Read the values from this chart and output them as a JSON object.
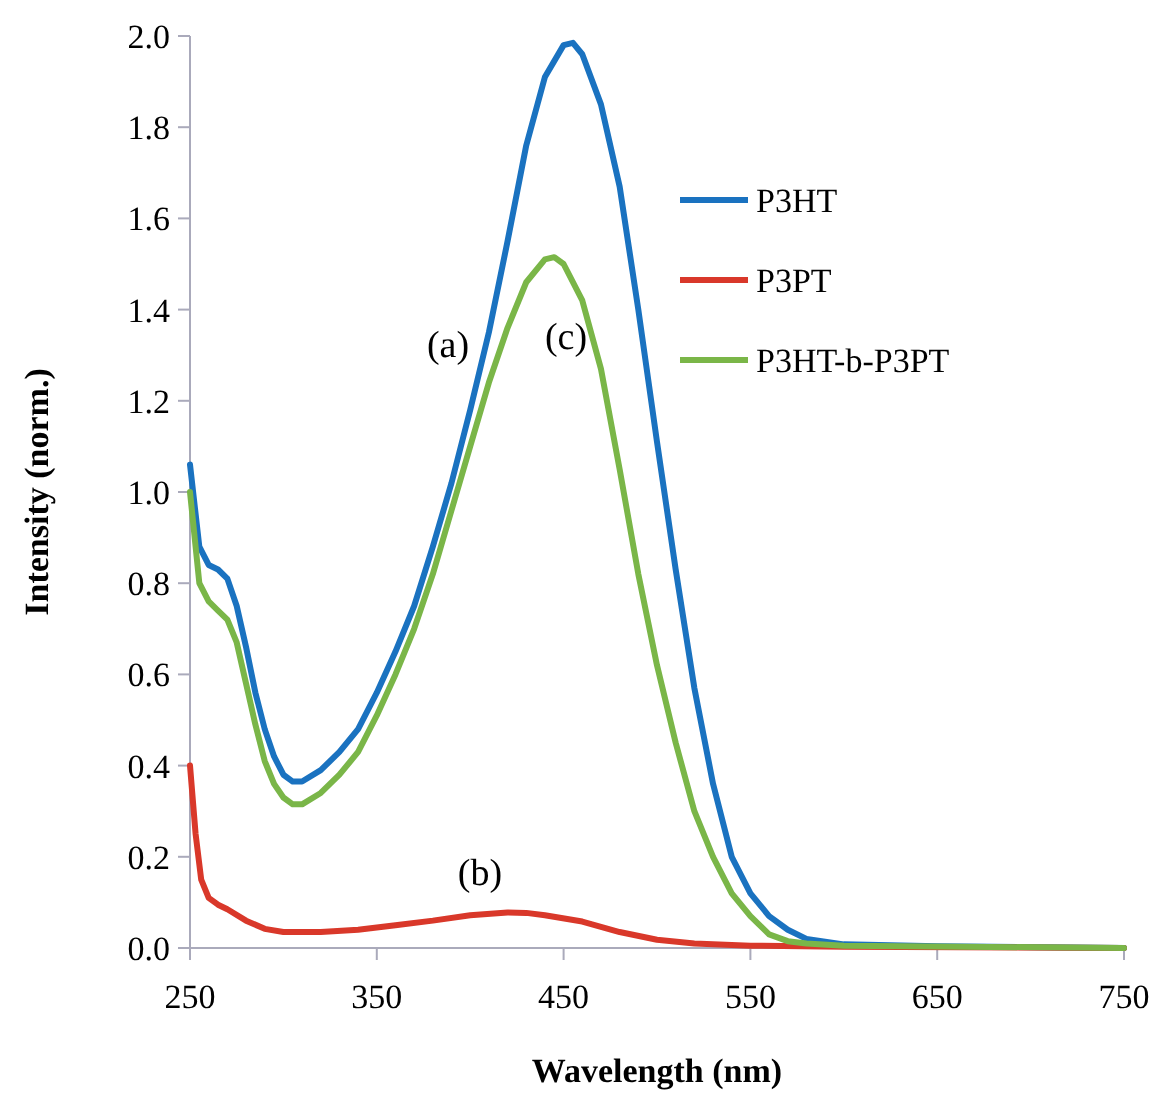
{
  "chart_data": {
    "type": "line",
    "xlabel": "Wavelength (nm)",
    "ylabel": "Intensity (norm.)",
    "xlim": [
      250,
      750
    ],
    "xticks": [
      250,
      350,
      450,
      550,
      650,
      750
    ],
    "ylim": [
      0,
      2
    ],
    "yticks": [
      {
        "value": 0,
        "label": "0.0"
      },
      {
        "value": 0.2,
        "label": "0.2"
      },
      {
        "value": 0.4,
        "label": "0.4"
      },
      {
        "value": 0.6,
        "label": "0.6"
      },
      {
        "value": 0.8,
        "label": "0.8"
      },
      {
        "value": 1,
        "label": "1.0"
      },
      {
        "value": 1.2,
        "label": "1.2"
      },
      {
        "value": 1.4,
        "label": "1.4"
      },
      {
        "value": 1.6,
        "label": "1.6"
      },
      {
        "value": 1.8,
        "label": "1.8"
      },
      {
        "value": 2,
        "label": "2.0"
      }
    ],
    "legend": "top right",
    "grid": false,
    "marker": "none",
    "line_style": "solid",
    "annotations": [
      "(a)",
      "(b)",
      "(c)"
    ],
    "series": [
      {
        "name": "P3HT",
        "color": "#1a72c0",
        "x": [
          250,
          255,
          260,
          265,
          270,
          275,
          280,
          285,
          290,
          295,
          300,
          305,
          310,
          320,
          330,
          340,
          350,
          360,
          370,
          380,
          390,
          400,
          410,
          420,
          430,
          440,
          450,
          455,
          460,
          470,
          480,
          490,
          500,
          510,
          520,
          530,
          540,
          550,
          560,
          570,
          580,
          600,
          650,
          750
        ],
        "values": [
          1.06,
          0.88,
          0.84,
          0.83,
          0.81,
          0.75,
          0.66,
          0.56,
          0.48,
          0.42,
          0.38,
          0.365,
          0.365,
          0.39,
          0.43,
          0.48,
          0.56,
          0.65,
          0.75,
          0.88,
          1.02,
          1.18,
          1.35,
          1.55,
          1.76,
          1.91,
          1.98,
          1.985,
          1.96,
          1.85,
          1.67,
          1.4,
          1.11,
          0.83,
          0.57,
          0.36,
          0.2,
          0.12,
          0.07,
          0.04,
          0.02,
          0.008,
          0.004,
          0
        ]
      },
      {
        "name": "P3PT",
        "color": "#d9382a",
        "x": [
          250,
          253,
          256,
          260,
          265,
          270,
          280,
          290,
          300,
          320,
          340,
          360,
          380,
          400,
          420,
          430,
          440,
          460,
          480,
          500,
          520,
          550,
          600,
          750
        ],
        "values": [
          0.4,
          0.25,
          0.15,
          0.11,
          0.095,
          0.085,
          0.06,
          0.042,
          0.035,
          0.035,
          0.04,
          0.05,
          0.06,
          0.072,
          0.078,
          0.077,
          0.072,
          0.058,
          0.035,
          0.018,
          0.01,
          0.005,
          0.003,
          0
        ]
      },
      {
        "name": "P3HT-b-P3PT",
        "color": "#7ab648",
        "x": [
          250,
          255,
          260,
          265,
          270,
          275,
          280,
          285,
          290,
          295,
          300,
          305,
          310,
          320,
          330,
          340,
          350,
          360,
          370,
          380,
          390,
          400,
          410,
          420,
          430,
          440,
          445,
          450,
          460,
          470,
          480,
          490,
          500,
          510,
          520,
          530,
          540,
          550,
          560,
          570,
          580,
          600,
          750
        ],
        "values": [
          1.0,
          0.8,
          0.76,
          0.74,
          0.72,
          0.67,
          0.58,
          0.49,
          0.41,
          0.36,
          0.33,
          0.315,
          0.315,
          0.34,
          0.38,
          0.43,
          0.51,
          0.6,
          0.7,
          0.82,
          0.96,
          1.1,
          1.24,
          1.36,
          1.46,
          1.51,
          1.515,
          1.5,
          1.42,
          1.27,
          1.05,
          0.82,
          0.62,
          0.45,
          0.3,
          0.2,
          0.12,
          0.07,
          0.03,
          0.015,
          0.01,
          0.005,
          0
        ]
      }
    ]
  }
}
